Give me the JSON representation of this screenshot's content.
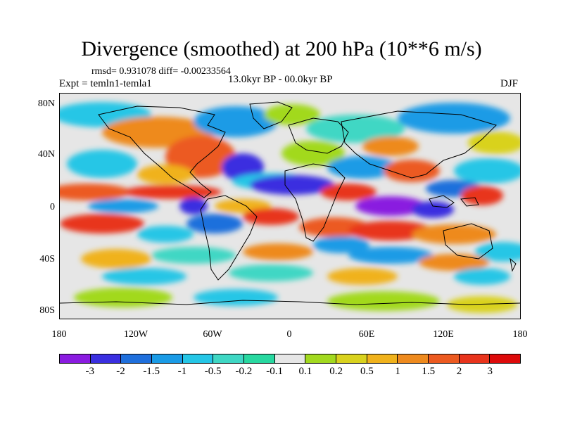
{
  "title": "Divergence (smoothed) at 200 hPa (10**6 m/s)",
  "subtitle": {
    "rmsd_diff": "rmsd= 0.931078 diff= -0.00233564",
    "experiment": "Expt = temln1-temla1",
    "period": "13.0kyr BP - 00.0kyr BP",
    "season": "DJF"
  },
  "axes": {
    "y_labels": [
      "80N",
      "40N",
      "0",
      "40S",
      "80S"
    ],
    "x_labels": [
      "180",
      "120W",
      "60W",
      "0",
      "60E",
      "120E",
      "180"
    ]
  },
  "colorbar": {
    "labels": [
      "-3",
      "-2",
      "-1.5",
      "-1",
      "-0.5",
      "-0.2",
      "-0.1",
      "0.1",
      "0.2",
      "0.5",
      "1",
      "1.5",
      "2",
      "3"
    ],
    "colors": [
      "#8a1be0",
      "#3a2fe0",
      "#1f6fdc",
      "#1a9be6",
      "#25c6e6",
      "#3fd7c4",
      "#28d8a0",
      "#e6e6e6",
      "#a2d91f",
      "#d9d21e",
      "#f0b21c",
      "#ee8a1e",
      "#ec5a20",
      "#e8341c",
      "#dd0a0a"
    ]
  }
}
